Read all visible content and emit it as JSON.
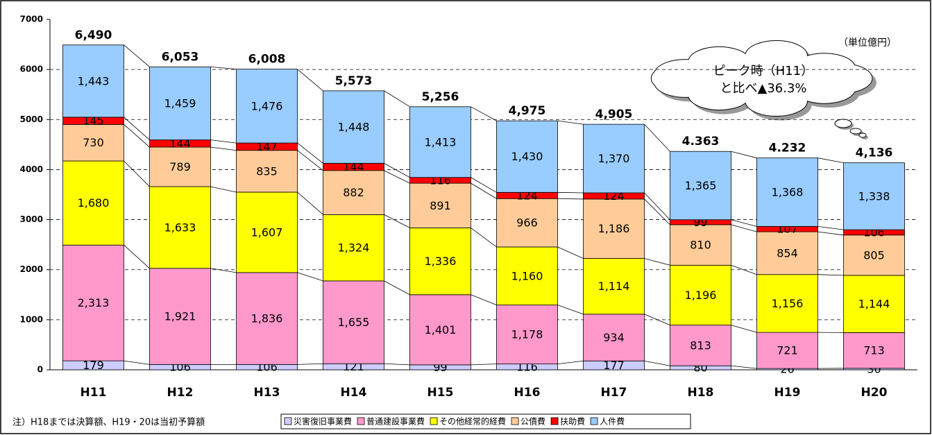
{
  "chart_data": {
    "type": "stacked-bar",
    "categories": [
      "H11",
      "H12",
      "H13",
      "H14",
      "H15",
      "H16",
      "H17",
      "H18",
      "H19",
      "H20"
    ],
    "series": [
      {
        "name": "災害復旧事業費",
        "color": "#ccccff",
        "values": [
          179,
          106,
          106,
          121,
          99,
          116,
          177,
          80,
          26,
          30
        ],
        "value_labels": [
          "179",
          "106",
          "106",
          "121",
          "99",
          "116",
          "177",
          "80",
          "26",
          "30"
        ]
      },
      {
        "name": "普通建設事業費",
        "color": "#ff99cc",
        "values": [
          2313,
          1921,
          1836,
          1655,
          1401,
          1178,
          934,
          813,
          721,
          713
        ],
        "value_labels": [
          "2,313",
          "1,921",
          "1,836",
          "1,655",
          "1,401",
          "1,178",
          "934",
          "813",
          "721",
          "713"
        ]
      },
      {
        "name": "その他経常的経費",
        "color": "#ffff00",
        "values": [
          1680,
          1633,
          1607,
          1324,
          1336,
          1160,
          1114,
          1196,
          1156,
          1144
        ],
        "value_labels": [
          "1,680",
          "1,633",
          "1,607",
          "1,324",
          "1,336",
          "1,160",
          "1,114",
          "1,196",
          "1,156",
          "1,144"
        ]
      },
      {
        "name": "公債費",
        "color": "#ffcc99",
        "values": [
          730,
          789,
          835,
          882,
          891,
          966,
          1186,
          810,
          854,
          805
        ],
        "value_labels": [
          "730",
          "789",
          "835",
          "882",
          "891",
          "966",
          "1,186",
          "810",
          "854",
          "805"
        ]
      },
      {
        "name": "扶助費",
        "color": "#ff0000",
        "values": [
          145,
          144,
          147,
          144,
          116,
          124,
          124,
          99,
          107,
          106
        ],
        "value_labels": [
          "145",
          "144",
          "147",
          "144",
          "116",
          "124",
          "124",
          "99",
          "107",
          "106"
        ]
      },
      {
        "name": "人件費",
        "color": "#99ccff",
        "values": [
          1443,
          1459,
          1476,
          1448,
          1413,
          1430,
          1370,
          1365,
          1368,
          1338
        ],
        "value_labels": [
          "1,443",
          "1,459",
          "1,476",
          "1,448",
          "1,413",
          "1,430",
          "1,370",
          "1,365",
          "1,368",
          "1,338"
        ]
      }
    ],
    "totals": {
      "values": [
        6490,
        6053,
        6008,
        5573,
        5256,
        4975,
        4905,
        4363,
        4232,
        4136
      ],
      "value_labels": [
        "6,490",
        "6,053",
        "6,008",
        "5,573",
        "5,256",
        "4,975",
        "4,905",
        "4.363",
        "4.232",
        "4,136"
      ]
    },
    "ylim": [
      0,
      7000
    ],
    "yticks": [
      0,
      1000,
      2000,
      3000,
      4000,
      5000,
      6000,
      7000
    ],
    "grid": true,
    "unit_label": "（単位億円）",
    "callout": [
      "ピーク時（H11）",
      "と比べ▲36.3%"
    ],
    "note": "注）H18までは決算額、H19・20は当初予算額"
  }
}
